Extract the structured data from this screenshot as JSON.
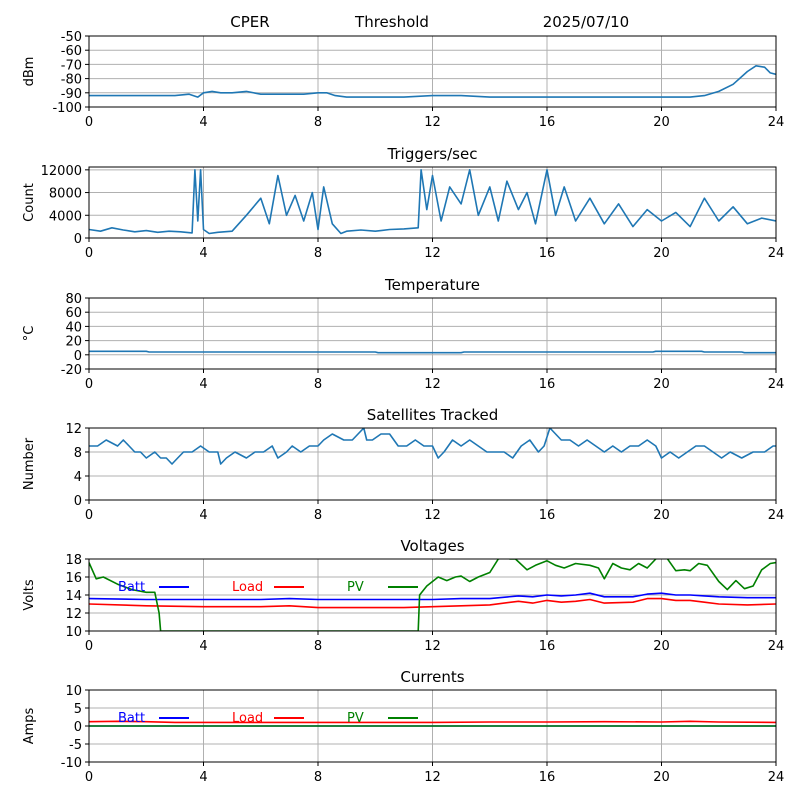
{
  "header": {
    "site": "CPER",
    "mode": "Threshold",
    "date": "2025/07/10"
  },
  "colors": {
    "series": "#1f77b4",
    "batt": "#0000ff",
    "load": "#ff0000",
    "pv": "#008000",
    "grid": "#b0b0b0"
  },
  "chart_data": [
    {
      "id": "power",
      "type": "line",
      "title": "",
      "xlabel": "",
      "ylabel": "dBm",
      "xlim": [
        0,
        24
      ],
      "ylim": [
        -100,
        -50
      ],
      "xticks": [
        0,
        4,
        8,
        12,
        16,
        20,
        24
      ],
      "yticks": [
        -100,
        -90,
        -80,
        -70,
        -60,
        -50
      ],
      "grid": true,
      "series": [
        {
          "color": "#1f77b4",
          "x": [
            0,
            1,
            2,
            3,
            3.5,
            3.8,
            4.0,
            4.3,
            4.6,
            5.0,
            5.5,
            6.0,
            6.5,
            7.0,
            7.5,
            8.0,
            8.3,
            8.6,
            9.0,
            10,
            11,
            12,
            13,
            14,
            15,
            16,
            17,
            18,
            19,
            20,
            21,
            21.5,
            22.0,
            22.5,
            23.0,
            23.3,
            23.6,
            23.8,
            24.0
          ],
          "y": [
            -92,
            -92,
            -92,
            -92,
            -91,
            -93,
            -90,
            -89,
            -90,
            -90,
            -89,
            -91,
            -91,
            -91,
            -91,
            -90,
            -90,
            -92,
            -93,
            -93,
            -93,
            -92,
            -92,
            -93,
            -93,
            -93,
            -93,
            -93,
            -93,
            -93,
            -93,
            -92,
            -89,
            -84,
            -75,
            -71,
            -72,
            -76,
            -77
          ]
        }
      ]
    },
    {
      "id": "triggers",
      "type": "line",
      "title": "Triggers/sec",
      "xlabel": "",
      "ylabel": "Count",
      "xlim": [
        0,
        24
      ],
      "ylim": [
        0,
        12500
      ],
      "xticks": [
        0,
        4,
        8,
        12,
        16,
        20,
        24
      ],
      "yticks": [
        0,
        4000,
        8000,
        12000
      ],
      "grid": true,
      "series": [
        {
          "color": "#1f77b4",
          "x": [
            0,
            0.4,
            0.8,
            1.2,
            1.6,
            2.0,
            2.4,
            2.8,
            3.2,
            3.6,
            3.7,
            3.8,
            3.9,
            4.0,
            4.2,
            4.5,
            5.0,
            5.5,
            6.0,
            6.3,
            6.6,
            6.9,
            7.2,
            7.5,
            7.8,
            8.0,
            8.2,
            8.5,
            8.8,
            9.0,
            9.5,
            10.0,
            10.5,
            11.0,
            11.5,
            11.6,
            11.8,
            12.0,
            12.3,
            12.6,
            13.0,
            13.3,
            13.6,
            14.0,
            14.3,
            14.6,
            15.0,
            15.3,
            15.6,
            16.0,
            16.3,
            16.6,
            17.0,
            17.5,
            18.0,
            18.5,
            19.0,
            19.5,
            20.0,
            20.5,
            21.0,
            21.5,
            22.0,
            22.5,
            23.0,
            23.5,
            24.0
          ],
          "y": [
            1500,
            1200,
            1800,
            1400,
            1100,
            1300,
            1000,
            1200,
            1100,
            900,
            12000,
            3000,
            12000,
            1500,
            800,
            1000,
            1200,
            4000,
            7000,
            2500,
            11000,
            4000,
            7500,
            3000,
            8000,
            1500,
            9000,
            2500,
            800,
            1200,
            1400,
            1200,
            1500,
            1600,
            1800,
            12000,
            5000,
            11000,
            3000,
            9000,
            6000,
            12000,
            4000,
            9000,
            3000,
            10000,
            5000,
            8000,
            2500,
            12000,
            4000,
            9000,
            3000,
            7000,
            2500,
            6000,
            2000,
            5000,
            3000,
            4500,
            2000,
            7000,
            3000,
            5500,
            2500,
            3500,
            3000
          ]
        }
      ]
    },
    {
      "id": "temperature",
      "type": "line",
      "title": "Temperature",
      "xlabel": "",
      "ylabel": "°C",
      "xlim": [
        0,
        24
      ],
      "ylim": [
        -20,
        80
      ],
      "xticks": [
        0,
        4,
        8,
        12,
        16,
        20,
        24
      ],
      "yticks": [
        -20,
        0,
        20,
        40,
        60,
        80
      ],
      "grid": true,
      "series": [
        {
          "color": "#1f77b4",
          "x": [
            0,
            2,
            2.1,
            10,
            10.1,
            13,
            13.1,
            19.7,
            19.8,
            21.4,
            21.5,
            22.8,
            22.9,
            24
          ],
          "y": [
            5,
            5,
            4,
            4,
            3,
            3,
            4,
            4,
            5,
            5,
            4,
            4,
            3,
            3
          ]
        }
      ]
    },
    {
      "id": "satellites",
      "type": "line",
      "title": "Satellites Tracked",
      "xlabel": "",
      "ylabel": "Number",
      "xlim": [
        0,
        24
      ],
      "ylim": [
        0,
        12
      ],
      "xticks": [
        0,
        4,
        8,
        12,
        16,
        20,
        24
      ],
      "yticks": [
        0,
        4,
        8,
        12
      ],
      "grid": true,
      "series": [
        {
          "color": "#1f77b4",
          "x": [
            0,
            0.3,
            0.6,
            1.0,
            1.2,
            1.4,
            1.6,
            1.8,
            2.0,
            2.3,
            2.5,
            2.7,
            2.9,
            3.1,
            3.3,
            3.6,
            3.9,
            4.2,
            4.5,
            4.6,
            4.8,
            5.1,
            5.5,
            5.8,
            6.1,
            6.4,
            6.6,
            6.9,
            7.1,
            7.4,
            7.7,
            8.0,
            8.2,
            8.5,
            8.9,
            9.2,
            9.6,
            9.7,
            9.9,
            10.2,
            10.5,
            10.8,
            11.1,
            11.4,
            11.7,
            12.0,
            12.2,
            12.4,
            12.7,
            13.0,
            13.3,
            13.6,
            13.9,
            14.2,
            14.5,
            14.8,
            15.1,
            15.4,
            15.7,
            15.9,
            16.1,
            16.3,
            16.5,
            16.8,
            17.1,
            17.4,
            17.7,
            18.0,
            18.3,
            18.6,
            18.9,
            19.2,
            19.5,
            19.8,
            20.0,
            20.3,
            20.6,
            20.9,
            21.2,
            21.5,
            21.8,
            22.1,
            22.4,
            22.8,
            23.2,
            23.6,
            23.9,
            24.0
          ],
          "y": [
            9,
            9,
            10,
            9,
            10,
            9,
            8,
            8,
            7,
            8,
            7,
            7,
            6,
            7,
            8,
            8,
            9,
            8,
            8,
            6,
            7,
            8,
            7,
            8,
            8,
            9,
            7,
            8,
            9,
            8,
            9,
            9,
            10,
            11,
            10,
            10,
            12,
            10,
            10,
            11,
            11,
            9,
            9,
            10,
            9,
            9,
            7,
            8,
            10,
            9,
            10,
            9,
            8,
            8,
            8,
            7,
            9,
            10,
            8,
            9,
            12,
            11,
            10,
            10,
            9,
            10,
            9,
            8,
            9,
            8,
            9,
            9,
            10,
            9,
            7,
            8,
            7,
            8,
            9,
            9,
            8,
            7,
            8,
            7,
            8,
            8,
            9,
            9
          ]
        }
      ]
    },
    {
      "id": "voltages",
      "type": "line",
      "title": "Voltages",
      "xlabel": "",
      "ylabel": "Volts",
      "xlim": [
        0,
        24
      ],
      "ylim": [
        10,
        18
      ],
      "xticks": [
        0,
        4,
        8,
        12,
        16,
        20,
        24
      ],
      "yticks": [
        10,
        12,
        14,
        16,
        18
      ],
      "grid": true,
      "legend": "top-left",
      "series": [
        {
          "name": "Batt",
          "color": "#0000ff",
          "x": [
            0,
            2,
            4,
            6,
            7,
            8,
            10,
            11,
            12,
            13,
            14,
            15,
            15.5,
            16,
            16.5,
            17,
            17.5,
            18,
            19,
            19.5,
            20,
            20.5,
            21,
            21.5,
            22,
            23,
            24
          ],
          "y": [
            13.6,
            13.5,
            13.5,
            13.5,
            13.6,
            13.5,
            13.5,
            13.5,
            13.5,
            13.6,
            13.6,
            13.9,
            13.8,
            14.0,
            13.9,
            14.0,
            14.2,
            13.8,
            13.8,
            14.1,
            14.2,
            14.0,
            14.0,
            13.9,
            13.8,
            13.7,
            13.7
          ]
        },
        {
          "name": "Load",
          "color": "#ff0000",
          "x": [
            0,
            2,
            4,
            6,
            7,
            8,
            10,
            11,
            12,
            13,
            14,
            15,
            15.5,
            16,
            16.5,
            17,
            17.5,
            18,
            19,
            19.5,
            20,
            20.5,
            21,
            21.5,
            22,
            23,
            24
          ],
          "y": [
            13.0,
            12.8,
            12.7,
            12.7,
            12.8,
            12.6,
            12.6,
            12.6,
            12.7,
            12.8,
            12.9,
            13.3,
            13.1,
            13.4,
            13.2,
            13.3,
            13.5,
            13.1,
            13.2,
            13.6,
            13.6,
            13.4,
            13.4,
            13.2,
            13.0,
            12.9,
            13.0
          ]
        },
        {
          "name": "PV",
          "color": "#008000",
          "x": [
            0,
            0.25,
            0.5,
            1.0,
            1.5,
            2.0,
            2.3,
            2.45,
            2.5,
            11.5,
            11.55,
            11.8,
            12.2,
            12.5,
            12.8,
            13.0,
            13.3,
            13.6,
            14.0,
            14.3,
            14.6,
            14.7,
            14.9,
            15.3,
            15.6,
            16.0,
            16.3,
            16.6,
            17.0,
            17.5,
            17.8,
            18.0,
            18.3,
            18.6,
            18.9,
            19.2,
            19.5,
            19.8,
            20.1,
            20.5,
            20.8,
            21.0,
            21.3,
            21.6,
            22.0,
            22.3,
            22.6,
            22.9,
            23.2,
            23.5,
            23.8,
            24.0
          ],
          "y": [
            17.6,
            15.8,
            16.0,
            15.2,
            14.6,
            14.3,
            14.3,
            12.0,
            10.0,
            10.0,
            14.0,
            15.0,
            16.0,
            15.6,
            16.0,
            16.1,
            15.5,
            16.0,
            16.5,
            18.0,
            18.2,
            18.0,
            18.0,
            16.8,
            17.3,
            17.8,
            17.3,
            17.0,
            17.5,
            17.3,
            17.0,
            15.8,
            17.5,
            17.0,
            16.8,
            17.5,
            17.0,
            18.0,
            18.5,
            16.7,
            16.8,
            16.7,
            17.5,
            17.3,
            15.5,
            14.6,
            15.6,
            14.7,
            15.0,
            16.8,
            17.5,
            17.6
          ]
        }
      ]
    },
    {
      "id": "currents",
      "type": "line",
      "title": "Currents",
      "xlabel": "",
      "ylabel": "Amps",
      "xlim": [
        0,
        24
      ],
      "ylim": [
        -10,
        10
      ],
      "xticks": [
        0,
        4,
        8,
        12,
        16,
        20,
        24
      ],
      "yticks": [
        -10,
        -5,
        0,
        5,
        10
      ],
      "grid": true,
      "legend": "top-left",
      "series": [
        {
          "name": "Batt",
          "color": "#0000ff",
          "x": [
            0,
            24
          ],
          "y": [
            0.0,
            0.0
          ]
        },
        {
          "name": "Load",
          "color": "#ff0000",
          "x": [
            0,
            1,
            2,
            3,
            4,
            6,
            8,
            10,
            12,
            14,
            16,
            18,
            20,
            21,
            22,
            24
          ],
          "y": [
            1.2,
            1.3,
            1.2,
            1.0,
            1.0,
            1.0,
            1.0,
            1.0,
            1.0,
            1.1,
            1.1,
            1.2,
            1.1,
            1.3,
            1.1,
            1.0
          ]
        },
        {
          "name": "PV",
          "color": "#008000",
          "x": [
            0,
            24
          ],
          "y": [
            0.0,
            0.0
          ]
        }
      ]
    }
  ]
}
